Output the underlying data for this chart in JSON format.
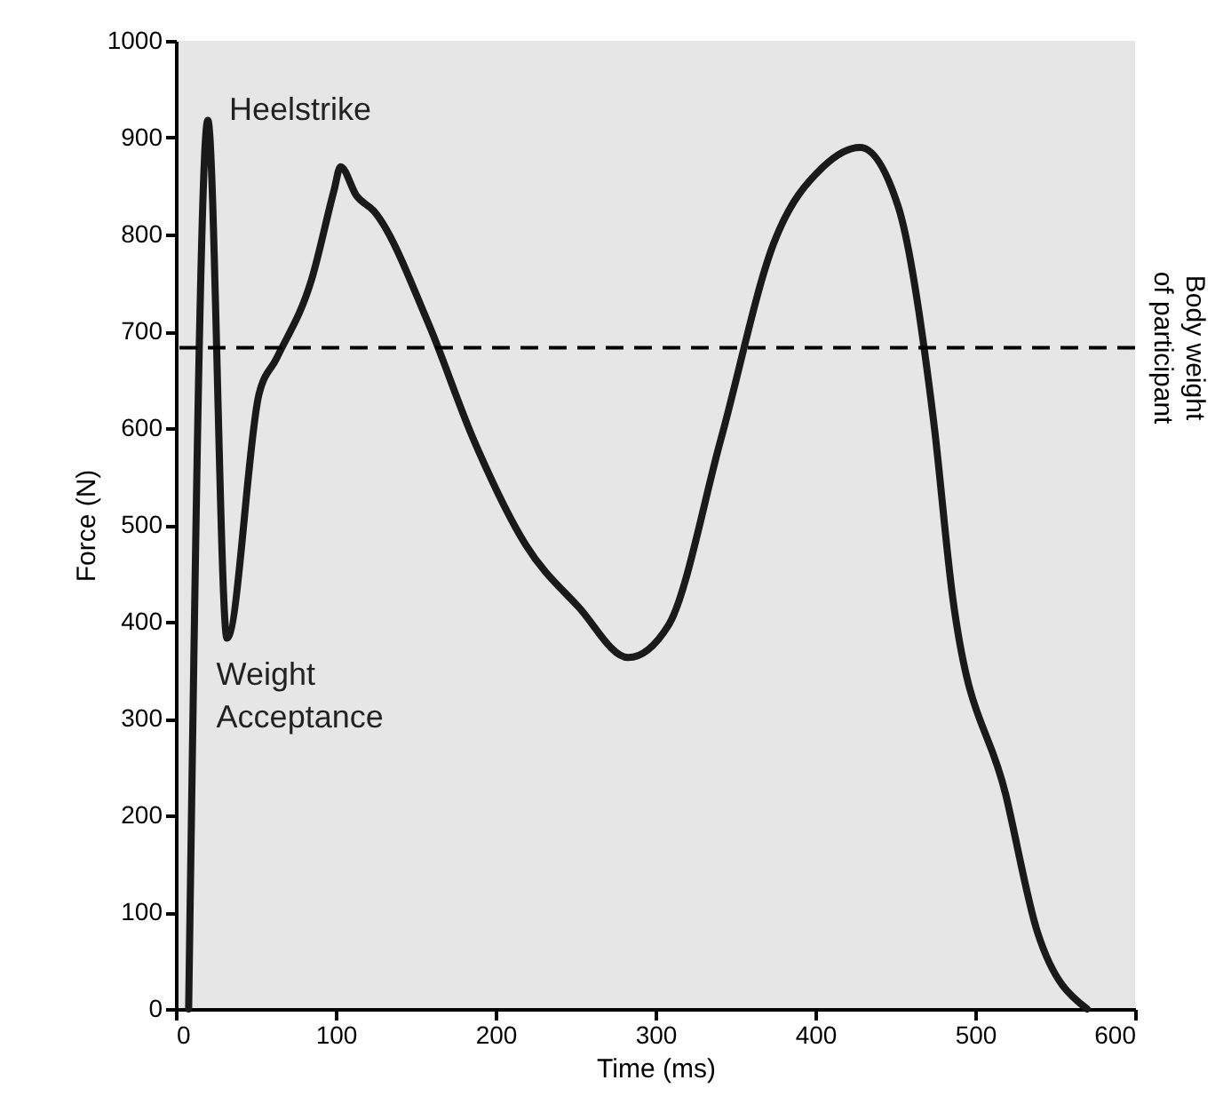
{
  "chart_data": {
    "type": "line",
    "xlabel": "Time (ms)",
    "ylabel": "Force (N)",
    "x": [
      8,
      20,
      32,
      52,
      63,
      85,
      99,
      103,
      113,
      124,
      158,
      186,
      219,
      252,
      283,
      308,
      341,
      374,
      405,
      428,
      452,
      474,
      486,
      519,
      539,
      570
    ],
    "series": [
      {
        "color": "#1a1a1a",
        "values": [
          0,
          918,
          383,
          635,
          672,
          754,
          846,
          870,
          840,
          824,
          708,
          589,
          479,
          415,
          363,
          396,
          589,
          791,
          870,
          890,
          828,
          607,
          424,
          222,
          79,
          0
        ]
      }
    ],
    "xlim": [
      0,
      600
    ],
    "ylim": [
      0,
      1000
    ],
    "xticks": [
      0,
      100,
      200,
      300,
      400,
      500,
      600
    ],
    "yticks": [
      0,
      100,
      200,
      300,
      400,
      500,
      600,
      700,
      800,
      900,
      1000
    ],
    "ref_lines": [
      {
        "axis": "y",
        "value": 683,
        "label": "Body weight\nof participant",
        "line_style": "dashed"
      }
    ],
    "annotations": [
      {
        "text": "Heelstrike",
        "x": 20,
        "y": 918
      },
      {
        "text": "Weight\nAcceptance",
        "x": 32,
        "y": 383
      }
    ],
    "grid": false,
    "line_style": "solid",
    "marker": "none"
  }
}
